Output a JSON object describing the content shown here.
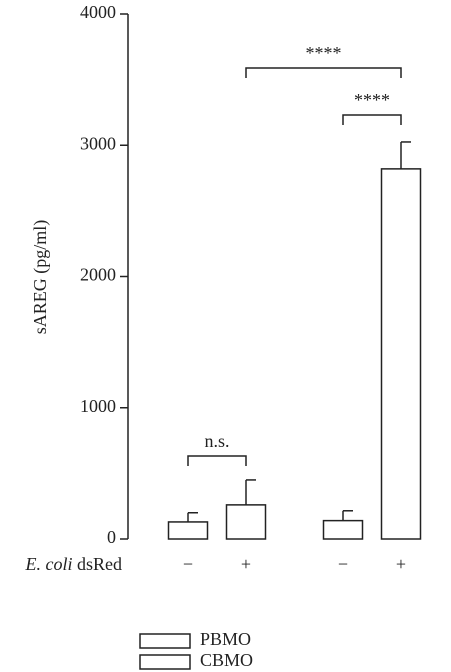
{
  "chart_data": {
    "type": "bar",
    "y_label": "sAREG (pg/ml)",
    "x_label": [
      "E. coli",
      "dsRed"
    ],
    "categories": [
      "−",
      "+",
      "−",
      "+"
    ],
    "series": [
      {
        "name": "PBMO",
        "color": "#ffffff",
        "values": [
          130,
          260,
          null,
          null
        ],
        "errors": [
          70,
          190,
          null,
          null
        ]
      },
      {
        "name": "CBMO",
        "color": "#d9d9d9",
        "values": [
          null,
          null,
          140,
          2820
        ],
        "errors": [
          null,
          null,
          75,
          205
        ]
      }
    ],
    "annotations": [
      "n.s.",
      "****",
      "****"
    ],
    "ylim": [
      0,
      4000
    ],
    "yticks": [
      0,
      1000,
      2000,
      3000,
      4000
    ]
  }
}
